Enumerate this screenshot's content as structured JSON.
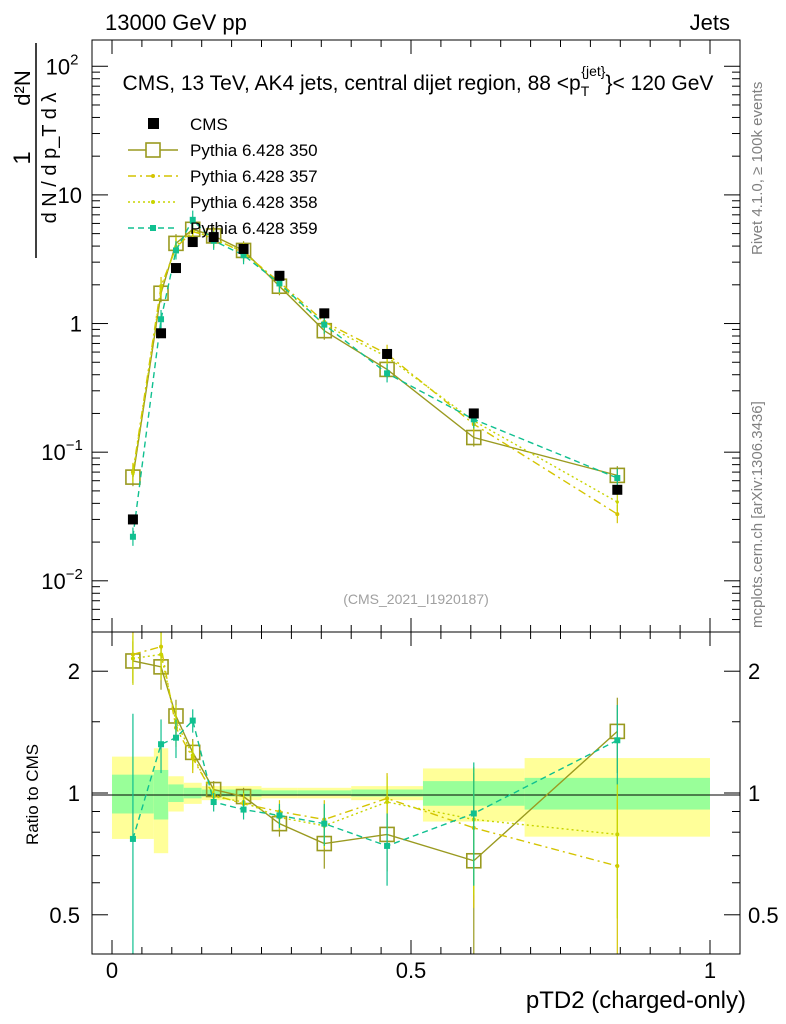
{
  "header": {
    "left": "13000 GeV pp",
    "right": "Jets"
  },
  "side_labels": {
    "rivet": "Rivet 4.1.0, ≥ 100k events",
    "mcplots": "mcplots.cern.ch [arXiv:1306.3436]"
  },
  "colors": {
    "cms": "#000000",
    "p350": "#9a9a20",
    "p357": "#d4c400",
    "p358": "#c8d400",
    "p359": "#10c090",
    "band_outer": "#ffff99",
    "band_inner": "#99ff99"
  },
  "chart_data": {
    "type": "scatter",
    "title": "CMS, 13 TeV, AK4 jets, central dijet region, 88 <p_T^{jet}< 120 GeV",
    "title_parts": {
      "prefix": "CMS, 13 TeV, AK4 jets, central dijet region, 88 <p",
      "sub": "T",
      "sup": "{jet}",
      "suffix": "}< 120 GeV"
    },
    "analysis_id": "(CMS_2021_I1920187)",
    "xlabel": "pTD2 (charged-only)",
    "ylabel": {
      "numerator": "d²N",
      "denominator": "d N / d p_T d λ",
      "prefix": "1"
    },
    "ratio_ylabel": "Ratio to CMS",
    "xlim": [
      0,
      1
    ],
    "ylim_main": [
      0.004,
      160
    ],
    "ylim_ratio": [
      0.4,
      2.5
    ],
    "x_ticks": [
      "0",
      "0.5",
      "1"
    ],
    "y_ticks_main": [
      {
        "base": "10",
        "exp": "−2",
        "value": 0.01
      },
      {
        "base": "10",
        "exp": "−1",
        "value": 0.1
      },
      {
        "base": "1",
        "exp": "",
        "value": 1
      },
      {
        "base": "10",
        "exp": "",
        "value": 10
      },
      {
        "base": "10",
        "exp": "2",
        "value": 100
      }
    ],
    "y_ticks_ratio": [
      {
        "label": "0.5",
        "value": 0.5
      },
      {
        "label": "1",
        "value": 1
      },
      {
        "label": "2",
        "value": 2
      }
    ],
    "bin_edges": [
      0.0,
      0.07,
      0.094,
      0.12,
      0.15,
      0.19,
      0.25,
      0.31,
      0.4,
      0.52,
      0.69,
      1.0
    ],
    "x": [
      0.035,
      0.082,
      0.107,
      0.135,
      0.17,
      0.22,
      0.28,
      0.355,
      0.46,
      0.605,
      0.845
    ],
    "band_inner": [
      0.11,
      0.14,
      0.05,
      0.03,
      0.02,
      0.02,
      0.015,
      0.015,
      0.02,
      0.07,
      0.09
    ],
    "band_outer": [
      0.23,
      0.29,
      0.1,
      0.06,
      0.04,
      0.04,
      0.03,
      0.03,
      0.04,
      0.15,
      0.22
    ],
    "legend": {
      "cms": "CMS",
      "p350": "Pythia 6.428 350",
      "p357": "Pythia 6.428 357",
      "p358": "Pythia 6.428 358",
      "p359": "Pythia 6.428 359"
    },
    "series": [
      {
        "name": "CMS",
        "key": "cms",
        "values": [
          0.03,
          0.84,
          2.7,
          4.3,
          4.7,
          3.8,
          2.35,
          1.2,
          0.58,
          0.2,
          0.051
        ]
      },
      {
        "name": "Pythia 6.428 350",
        "key": "p350",
        "values": [
          0.064,
          1.72,
          4.2,
          5.4,
          4.8,
          3.7,
          1.95,
          0.88,
          0.44,
          0.13,
          0.066
        ],
        "ratio": [
          2.12,
          2.05,
          1.55,
          1.26,
          1.02,
          0.98,
          0.84,
          0.75,
          0.79,
          0.68,
          1.42
        ],
        "ratio_err": [
          0.25,
          0.25,
          0.15,
          0.1,
          0.05,
          0.05,
          0.06,
          0.1,
          0.15,
          0.3,
          0.3
        ]
      },
      {
        "name": "Pythia 6.428 357",
        "key": "p357",
        "values": [
          0.07,
          1.95,
          3.9,
          5.2,
          4.6,
          3.55,
          2.1,
          1.03,
          0.58,
          0.165,
          0.033
        ],
        "ratio": [
          2.2,
          2.3,
          1.45,
          1.22,
          0.99,
          0.94,
          0.9,
          0.86,
          0.97,
          0.82,
          0.66
        ],
        "ratio_err": [
          0.3,
          0.3,
          0.15,
          0.1,
          0.05,
          0.05,
          0.06,
          0.1,
          0.15,
          0.3,
          0.3
        ]
      },
      {
        "name": "Pythia 6.428 358",
        "key": "p358",
        "values": [
          0.068,
          1.85,
          4.0,
          5.3,
          4.55,
          3.6,
          2.0,
          0.98,
          0.55,
          0.175,
          0.041
        ],
        "ratio": [
          2.15,
          2.2,
          1.5,
          1.24,
          0.98,
          0.95,
          0.87,
          0.83,
          0.95,
          0.86,
          0.79
        ],
        "ratio_err": [
          0.3,
          0.3,
          0.15,
          0.1,
          0.05,
          0.05,
          0.06,
          0.1,
          0.15,
          0.3,
          0.3
        ]
      },
      {
        "name": "Pythia 6.428 359",
        "key": "p359",
        "values": [
          0.022,
          1.08,
          3.7,
          6.4,
          4.4,
          3.4,
          2.05,
          0.98,
          0.41,
          0.18,
          0.063
        ],
        "ratio": [
          0.77,
          1.32,
          1.37,
          1.51,
          0.95,
          0.91,
          0.88,
          0.84,
          0.74,
          0.89,
          1.35
        ],
        "ratio_err": [
          0.8,
          0.2,
          0.15,
          0.1,
          0.05,
          0.05,
          0.06,
          0.1,
          0.15,
          0.3,
          0.3
        ]
      }
    ]
  }
}
